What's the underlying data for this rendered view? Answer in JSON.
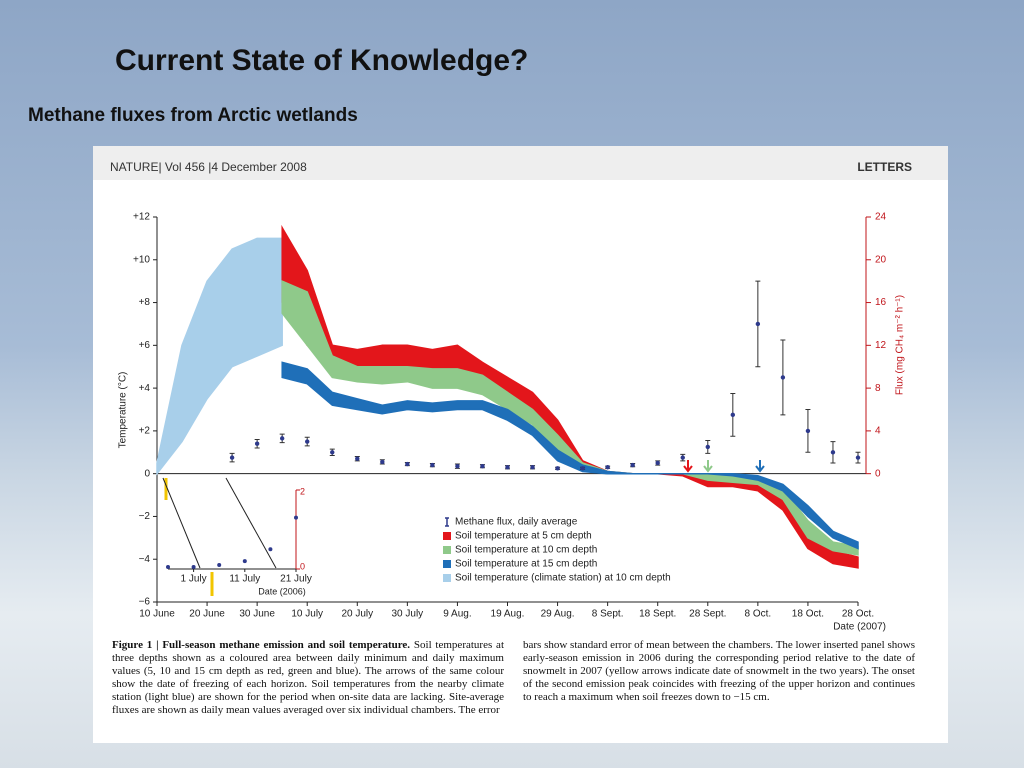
{
  "slide": {
    "title": "Current State of Knowledge?",
    "subtitle": "Methane fluxes from Arctic wetlands"
  },
  "figure_header": {
    "journal": "NATURE| Vol 456 |4 December 2008",
    "section": "LETTERS"
  },
  "chart_data": [
    {
      "type": "combo",
      "xlabel": "Date (2007)",
      "ylabel": "Temperature (°C)",
      "y2label": "Flux (mg CH₄ m⁻² h⁻¹)",
      "categories": [
        "10 June",
        null,
        "20 June",
        null,
        "30 June",
        null,
        "10 July",
        null,
        "20 July",
        null,
        "30 July",
        null,
        "9 Aug.",
        null,
        "19 Aug.",
        null,
        "29 Aug.",
        null,
        "8 Sept.",
        null,
        "18 Sept.",
        null,
        "28 Sept.",
        null,
        "8 Oct.",
        null,
        "18 Oct.",
        null,
        "28 Oct."
      ],
      "ylim": [
        -6,
        12
      ],
      "yticks": [
        {
          "value": -6,
          "label": "−6"
        },
        {
          "value": -4,
          "label": "−4"
        },
        {
          "value": -2,
          "label": "−2"
        },
        0,
        {
          "value": 2,
          "label": "+2"
        },
        {
          "value": 4,
          "label": "+4"
        },
        {
          "value": 6,
          "label": "+6"
        },
        {
          "value": 8,
          "label": "+8"
        },
        {
          "value": 10,
          "label": "+10"
        },
        {
          "value": 12,
          "label": "+12"
        }
      ],
      "y2lim": [
        0,
        24
      ],
      "y2ticks": [
        0,
        4,
        8,
        12,
        16,
        20,
        24
      ],
      "series": [
        {
          "name": "Methane flux, daily average",
          "color": "#2e3a8c",
          "axis": "y2",
          "values": [
            null,
            null,
            null,
            1.5,
            2.8,
            3.3,
            3.0,
            2.0,
            1.4,
            1.1,
            0.9,
            0.8,
            0.7,
            0.7,
            0.6,
            0.6,
            0.5,
            0.5,
            0.6,
            0.8,
            1.0,
            1.5,
            2.5,
            5.5,
            14,
            9,
            4,
            2,
            1.5
          ],
          "errors": [
            null,
            null,
            null,
            0.4,
            0.4,
            0.4,
            0.4,
            0.3,
            0.2,
            0.2,
            0.15,
            0.15,
            0.2,
            0.15,
            0.15,
            0.15,
            0.1,
            0.1,
            0.1,
            0.15,
            0.2,
            0.3,
            0.6,
            2,
            4,
            3.5,
            2,
            1,
            0.5
          ]
        },
        {
          "name": "Soil temperature at 5 cm depth",
          "color": "#e3161b",
          "min": [
            null,
            null,
            null,
            null,
            null,
            8,
            6,
            5,
            4.8,
            4.5,
            4.7,
            4.4,
            4.3,
            4,
            3.2,
            2.5,
            1,
            0.2,
            0,
            0,
            0,
            -0.1,
            -0.6,
            -0.6,
            -0.8,
            -1.7,
            -3.5,
            -4.2,
            -4.4
          ],
          "max": [
            null,
            null,
            null,
            null,
            null,
            11.5,
            9.5,
            6,
            5.8,
            6,
            6,
            5.8,
            6,
            5.2,
            4.5,
            3.8,
            2.5,
            0.6,
            0.1,
            0,
            0,
            0,
            -0.1,
            -0.2,
            -0.3,
            -1,
            -2.5,
            -3.6,
            -3.9
          ]
        },
        {
          "name": "Soil temperature at 10 cm depth",
          "color": "#8fc98a",
          "min": [
            null,
            null,
            null,
            null,
            null,
            7.5,
            6,
            4.5,
            4.3,
            4.2,
            4.3,
            4,
            4,
            3.7,
            3,
            2.3,
            0.9,
            0.2,
            0,
            0,
            0,
            0,
            -0.3,
            -0.4,
            -0.5,
            -1.2,
            -3,
            -3.6,
            -3.8
          ],
          "max": [
            null,
            null,
            null,
            null,
            null,
            9,
            8.5,
            5.5,
            5,
            5,
            5,
            4.9,
            4.9,
            4.6,
            3.8,
            3,
            1.8,
            0.5,
            0.1,
            0,
            0,
            0,
            0,
            -0.1,
            -0.2,
            -0.7,
            -2.2,
            -3.2,
            -3.4
          ]
        },
        {
          "name": "Soil temperature at 15 cm depth",
          "color": "#1f6fb8",
          "min": [
            null,
            null,
            null,
            null,
            null,
            4.5,
            4.2,
            3.2,
            3,
            2.8,
            3,
            2.9,
            3,
            3,
            2.5,
            1.8,
            0.6,
            0.1,
            0,
            0,
            0,
            0,
            0,
            -0.1,
            -0.3,
            -0.8,
            -2,
            -3,
            -3.5
          ],
          "max": [
            null,
            null,
            null,
            null,
            null,
            5.2,
            4.9,
            3.8,
            3.5,
            3.2,
            3.4,
            3.3,
            3.4,
            3.4,
            3,
            2.2,
            1.1,
            0.4,
            0.1,
            0,
            0,
            0,
            0,
            0,
            -0.1,
            -0.5,
            -1.5,
            -2.7,
            -3.2
          ]
        },
        {
          "name": "Soil temperature (climate station) at 10 cm depth",
          "color": "#a8cfea",
          "min": [
            0,
            1.5,
            3.5,
            5,
            5.5,
            6,
            null,
            null,
            null,
            null,
            null,
            null,
            null,
            null,
            null,
            null,
            null,
            null,
            null,
            null,
            null,
            null,
            null,
            null,
            null,
            null,
            null,
            null,
            null
          ],
          "max": [
            0.5,
            6,
            9,
            10.5,
            11,
            11,
            null,
            null,
            null,
            null,
            null,
            null,
            null,
            null,
            null,
            null,
            null,
            null,
            null,
            null,
            null,
            null,
            null,
            null,
            null,
            null,
            null,
            null,
            null
          ]
        }
      ]
    },
    {
      "type": "scatter",
      "xlabel": "Date (2006)",
      "categories": [
        null,
        "1 July",
        null,
        "11 July",
        null,
        "21 July"
      ],
      "ylim": [
        0,
        2
      ],
      "yticks": [
        0,
        2
      ],
      "color": "#2e3a8c",
      "values": [
        0.05,
        0.05,
        0.1,
        0.2,
        0.5,
        1.3
      ]
    }
  ],
  "caption": {
    "title": "Figure 1 | Full-season methane emission and soil temperature.",
    "left": "Soil temperatures at three depths shown as a coloured area between daily minimum and daily maximum values (5, 10 and 15 cm depth as red, green and blue). The arrows of the same colour show the date of freezing of each horizon. Soil temperatures from the nearby climate station (light blue) are shown for the period when on-site data are lacking. Site-average fluxes are shown as daily mean values averaged over six individual chambers. The error",
    "right": "bars show standard error of mean between the chambers. The lower inserted panel shows early-season emission in 2006 during the corresponding period relative to the date of snowmelt in 2007 (yellow arrows indicate date of snowmelt in the two years). The onset of the second emission peak coincides with freezing of the upper horizon and continues to reach a maximum when soil freezes down to −15 cm."
  }
}
